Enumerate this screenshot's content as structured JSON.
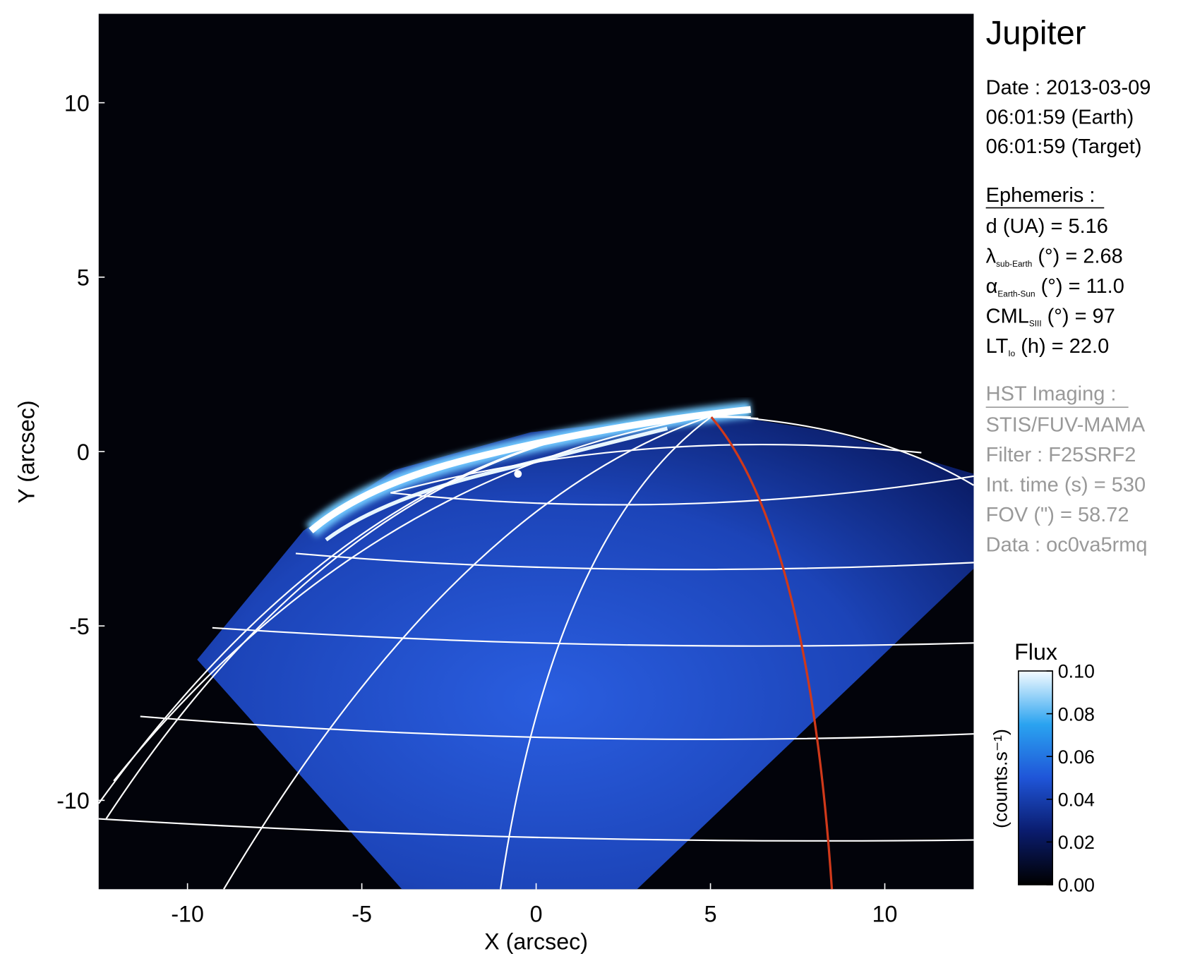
{
  "chart_data": {
    "type": "image",
    "xlabel": "X (arcsec)",
    "ylabel": "Y (arcsec)",
    "xlim": [
      -12.55,
      12.55
    ],
    "ylim": [
      -12.55,
      12.55
    ],
    "xticks": [
      -10,
      -5,
      0,
      5,
      10
    ],
    "yticks": [
      -10,
      -5,
      0,
      5,
      10
    ],
    "colorbar": {
      "title": "Flux",
      "label": "(counts.s⁻¹)",
      "lim": [
        0,
        0.1
      ],
      "ticks": [
        {
          "value": 0,
          "label": "0.00"
        },
        {
          "value": 0.02,
          "label": "0.02"
        },
        {
          "value": 0.04,
          "label": "0.04"
        },
        {
          "value": 0.06,
          "label": "0.06"
        },
        {
          "value": 0.08,
          "label": "0.08"
        },
        {
          "value": 0.1,
          "label": "0.10"
        }
      ]
    },
    "info": {
      "target": "Jupiter",
      "date": [
        "Date : 2013-03-09",
        "06:01:59 (Earth)",
        "06:01:59 (Target)"
      ],
      "ephemeris": {
        "title": "Ephemeris :",
        "rows": [
          {
            "label": "d (UA)    = 5.16"
          },
          {
            "label": "λ",
            "sub": "sub-Earth",
            "rest": " (°) = 2.68"
          },
          {
            "label": "α",
            "sub": "Earth-Sun",
            "rest": " (°) = 11.0"
          },
          {
            "label": "CML",
            "sub": "SIII",
            "rest": " (°) = 97"
          },
          {
            "label": "LT",
            "sub": "Io",
            "rest": " (h) = 22.0"
          }
        ]
      },
      "imaging": {
        "title": "HST Imaging :",
        "rows": [
          "STIS/FUV-MAMA",
          "Filter : F25SRF2",
          "Int. time (s) = 530",
          "FOV (\") = 58.72",
          "Data : oc0va5rmq"
        ]
      }
    }
  }
}
